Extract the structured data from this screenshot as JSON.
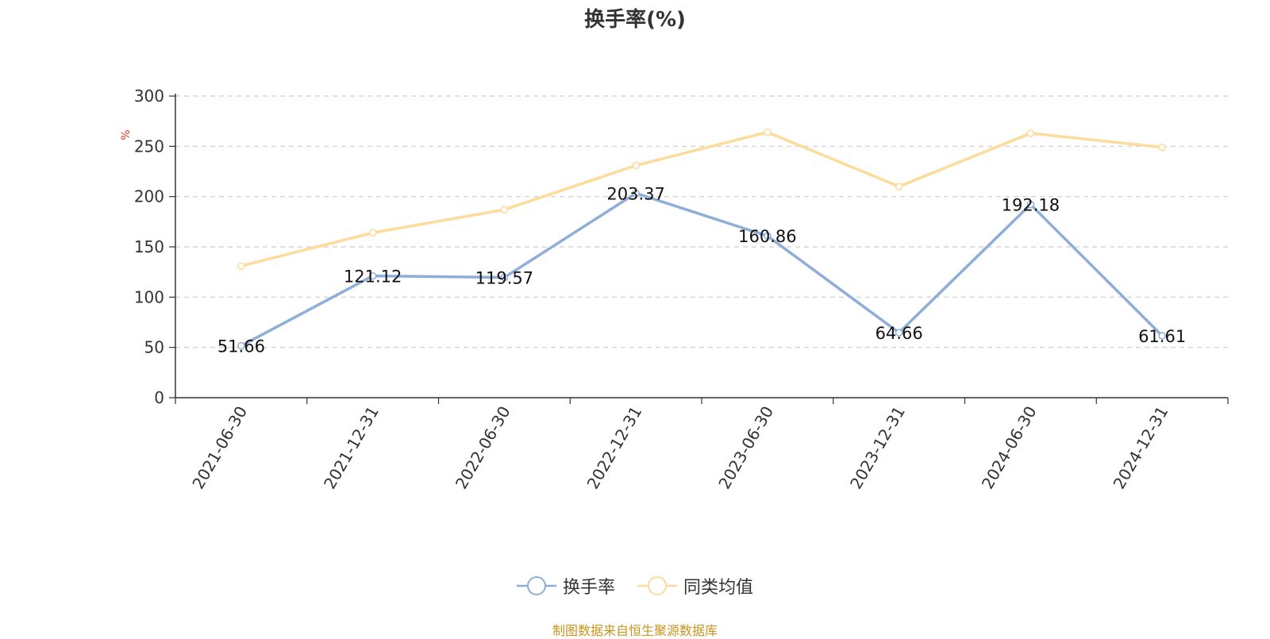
{
  "title": "换手率(%)",
  "source": "制图数据来自恒生聚源数据库",
  "chart_data": {
    "type": "line",
    "title": "换手率(%)",
    "ylabel": "%",
    "ylim": [
      0,
      300
    ],
    "yticks": [
      0,
      50,
      100,
      150,
      200,
      250,
      300
    ],
    "grid": true,
    "legend_position": "bottom",
    "categories": [
      "2021-06-30",
      "2021-12-31",
      "2022-06-30",
      "2022-12-31",
      "2023-06-30",
      "2023-12-31",
      "2024-06-30",
      "2024-12-31"
    ],
    "series": [
      {
        "name": "换手率",
        "color": "#8eaed9",
        "values": [
          51.66,
          121.12,
          119.57,
          203.37,
          160.86,
          64.66,
          192.18,
          61.61
        ],
        "labels": [
          "51.66",
          "121.12",
          "119.57",
          "203.37",
          "160.86",
          "64.66",
          "192.18",
          "61.61"
        ]
      },
      {
        "name": "同类均值",
        "color": "#fddb9a",
        "values": [
          131,
          164,
          187,
          231,
          264,
          210,
          263,
          249
        ]
      }
    ]
  }
}
